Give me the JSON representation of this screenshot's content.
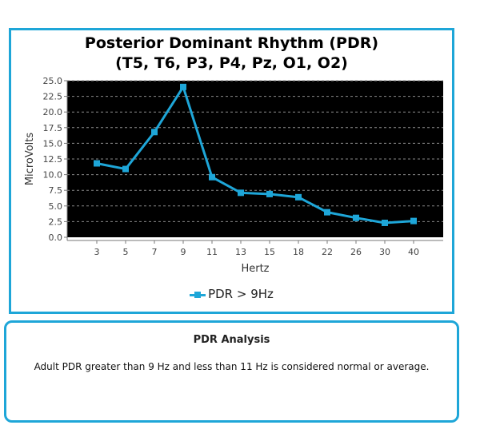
{
  "chart_panel": {
    "title_line1": "Posterior Dominant Rhythm (PDR)",
    "title_line2": "(T5, T6, P3, P4, Pz, O1, O2)"
  },
  "chart_data": {
    "type": "line",
    "title": "Posterior Dominant Rhythm (PDR) (T5, T6, P3, P4, Pz, O1, O2)",
    "xlabel": "Hertz",
    "ylabel": "MicroVolts",
    "categories": [
      "3",
      "5",
      "7",
      "9",
      "11",
      "13",
      "15",
      "18",
      "22",
      "26",
      "30",
      "40"
    ],
    "series": [
      {
        "name": "PDR > 9Hz",
        "values": [
          11.8,
          10.9,
          16.8,
          24.0,
          9.6,
          7.1,
          6.9,
          6.4,
          4.0,
          3.1,
          2.3,
          2.6
        ]
      }
    ],
    "ylim": [
      0,
      25
    ],
    "yticks": [
      "0.0",
      "2.5",
      "5.0",
      "7.5",
      "10.0",
      "12.5",
      "15.0",
      "17.5",
      "20.0",
      "22.5",
      "25.0"
    ],
    "grid": true,
    "legend_position": "bottom",
    "colors": {
      "series": "#1ea6d8",
      "plot_background": "#000000",
      "grid": "#8a8a8a",
      "frame": "#1ea6d8"
    }
  },
  "analysis": {
    "title": "PDR Analysis",
    "text": "Adult PDR greater than 9 Hz and less than 11 Hz is considered normal or average."
  }
}
